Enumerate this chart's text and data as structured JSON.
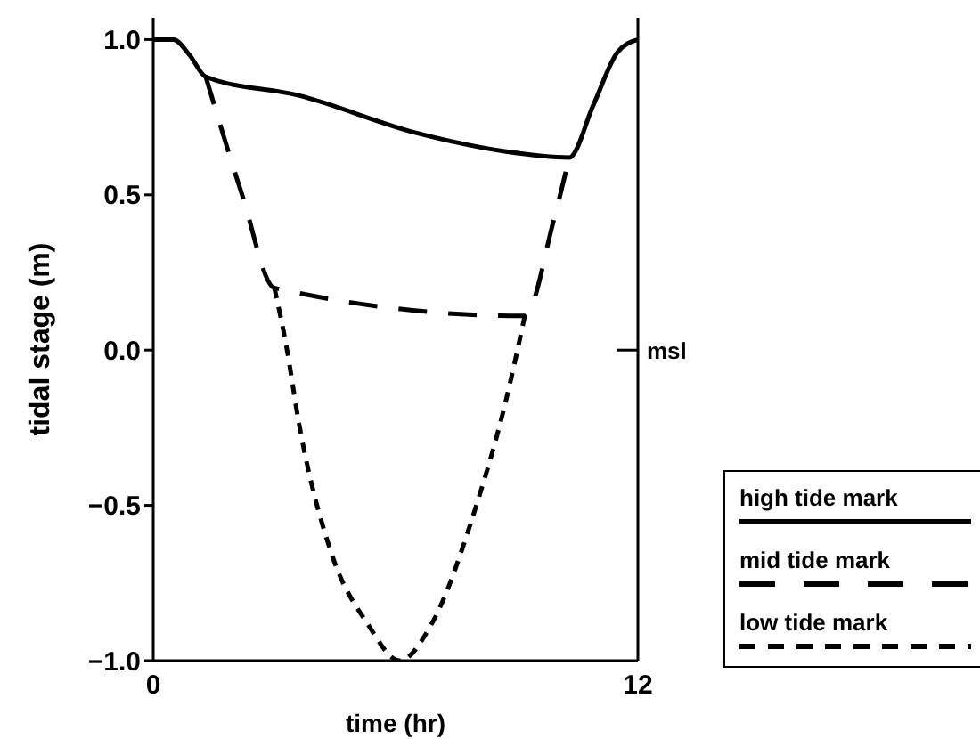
{
  "chart_data": {
    "type": "line",
    "xlabel": "time (hr)",
    "ylabel": "tidal stage (m)",
    "xlim": [
      0,
      12
    ],
    "xticks": [
      0,
      12
    ],
    "ylim": [
      -1,
      1.07
    ],
    "yticks": [
      {
        "value": -1,
        "label": "−1.0"
      },
      {
        "value": -0.5,
        "label": "−0.5"
      },
      {
        "value": 0,
        "label": "0.0"
      },
      0.5,
      {
        "value": 1,
        "label": "1.0"
      }
    ],
    "legend": "right",
    "ref_lines": [
      {
        "axis": "y",
        "value": 0,
        "label": "msl"
      }
    ],
    "series": [
      {
        "name": "high tide mark",
        "color": "#000000",
        "line_style": "solid",
        "x": [
          0,
          0.5,
          0.9,
          1.3,
          3.6,
          6.5,
          8.7,
          10.3,
          10.9,
          11.5,
          12
        ],
        "values": [
          1.0,
          1.0,
          0.95,
          0.88,
          0.82,
          0.7,
          0.64,
          0.62,
          0.79,
          0.96,
          1.0
        ]
      },
      {
        "name": "mid tide mark",
        "color": "#000000",
        "line_style": "dashed",
        "x": [
          1.3,
          2.2,
          3.0,
          9.2,
          9.9,
          10.3
        ],
        "values": [
          0.88,
          0.5,
          0.2,
          0.11,
          0.41,
          0.62
        ]
      },
      {
        "name": "low tide mark",
        "color": "#000000",
        "line_style": "dotted",
        "x": [
          3.0,
          3.3,
          3.6,
          4.4,
          5.3,
          6.1,
          6.9,
          8.0,
          8.7,
          9.2
        ],
        "values": [
          0.2,
          0.01,
          -0.23,
          -0.65,
          -0.88,
          -1.0,
          -0.88,
          -0.5,
          -0.18,
          0.11
        ]
      }
    ]
  }
}
